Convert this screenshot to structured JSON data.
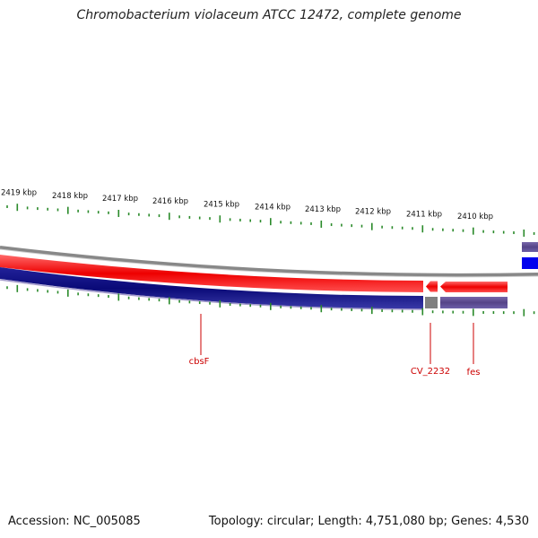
{
  "title": "Chromobacterium violaceum ATCC 12472, complete genome",
  "footer": {
    "accession": "Accession: NC_005085",
    "summary": "Topology: circular; Length: 4,751,080 bp; Genes: 4,530"
  },
  "scale": {
    "ticks": [
      "2419 kbp",
      "2418 kbp",
      "2417 kbp",
      "2416 kbp",
      "2415 kbp",
      "2414 kbp",
      "2413 kbp",
      "2412 kbp",
      "2411 kbp",
      "2410 kbp"
    ]
  },
  "genes": [
    "cbsF",
    "CV_2232",
    "fes"
  ],
  "colors": {
    "forward": "#ee0000",
    "reverse": "#0a0a7a",
    "backbone": "#888888",
    "ticks": "#2a8a2a",
    "gene_label": "#cc0000",
    "blue_block": "#0000ee",
    "purple_block": "#554488",
    "grey_block": "#808080"
  }
}
